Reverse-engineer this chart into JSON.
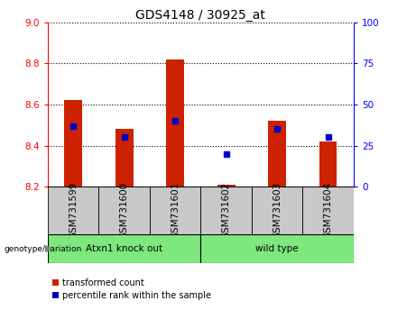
{
  "title": "GDS4148 / 30925_at",
  "samples": [
    "GSM731599",
    "GSM731600",
    "GSM731601",
    "GSM731602",
    "GSM731603",
    "GSM731604"
  ],
  "red_values": [
    8.62,
    8.48,
    8.82,
    8.21,
    8.52,
    8.42
  ],
  "blue_values": [
    37,
    30,
    40,
    20,
    35,
    30
  ],
  "baseline": 8.2,
  "ylim_left": [
    8.2,
    9.0
  ],
  "ylim_right": [
    0,
    100
  ],
  "yticks_left": [
    8.2,
    8.4,
    8.6,
    8.8,
    9.0
  ],
  "yticks_right": [
    0,
    25,
    50,
    75,
    100
  ],
  "group1_label": "Atxn1 knock out",
  "group2_label": "wild type",
  "genotype_label": "genotype/variation",
  "legend_red": "transformed count",
  "legend_blue": "percentile rank within the sample",
  "bar_color": "#CC2200",
  "dot_color": "#0000CC",
  "bg_gray": "#C8C8C8",
  "bg_green": "#7EE87E",
  "bar_width": 0.35,
  "title_fontsize": 10,
  "tick_fontsize": 7.5,
  "label_fontsize": 7.5,
  "legend_fontsize": 7
}
